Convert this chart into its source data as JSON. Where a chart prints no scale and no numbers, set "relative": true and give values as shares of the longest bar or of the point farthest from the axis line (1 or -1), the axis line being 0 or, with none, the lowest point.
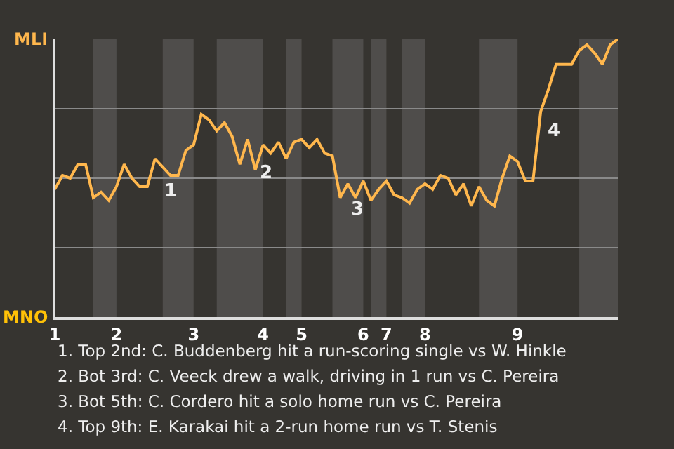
{
  "chart_data": {
    "type": "line",
    "relative": true,
    "categories": [
      "1",
      null,
      null,
      null,
      null,
      null,
      null,
      null,
      "2",
      null,
      null,
      null,
      null,
      null,
      null,
      null,
      null,
      null,
      "3",
      null,
      null,
      null,
      null,
      null,
      null,
      null,
      null,
      "4",
      null,
      null,
      null,
      null,
      "5",
      null,
      null,
      null,
      null,
      null,
      null,
      null,
      "6",
      null,
      null,
      "7",
      null,
      null,
      null,
      null,
      "8",
      null,
      null,
      null,
      null,
      null,
      null,
      null,
      null,
      null,
      null,
      null,
      "9",
      null,
      null,
      null,
      null,
      null,
      null,
      null,
      null,
      null,
      null,
      null,
      null,
      null
    ],
    "series": [
      {
        "color": "#ffb74d",
        "values": [
          0.46,
          0.51,
          0.5,
          0.55,
          0.55,
          0.43,
          0.45,
          0.42,
          0.47,
          0.55,
          0.5,
          0.47,
          0.47,
          0.57,
          0.54,
          0.51,
          0.51,
          0.6,
          0.62,
          0.73,
          0.71,
          0.67,
          0.7,
          0.65,
          0.55,
          0.64,
          0.53,
          0.62,
          0.59,
          0.63,
          0.57,
          0.63,
          0.64,
          0.61,
          0.64,
          0.59,
          0.58,
          0.43,
          0.48,
          0.43,
          0.49,
          0.42,
          0.46,
          0.49,
          0.44,
          0.43,
          0.41,
          0.46,
          0.48,
          0.46,
          0.51,
          0.5,
          0.44,
          0.48,
          0.4,
          0.47,
          0.42,
          0.4,
          0.5,
          0.58,
          0.56,
          0.49,
          0.49,
          0.74,
          0.82,
          0.91,
          0.91,
          0.91,
          0.96,
          0.98,
          0.95,
          0.91,
          0.98,
          1.0
        ]
      }
    ],
    "grid": "y",
    "marker": "none",
    "line_style": "solid",
    "annotations": [
      "MLI",
      "MNO",
      "1",
      "2",
      "3",
      "4",
      "1. Top 2nd: C. Buddenberg hit a run-scoring single vs W. Hinkle",
      "2. Bot 3rd: C. Veeck drew a walk, driving in 1 run vs C. Pereira",
      "3. Bot 5th: C. Cordero hit a solo home run vs C. Pereira",
      "4. Top 9th: E. Karakai hit a 2-run home run vs T. Stenis"
    ]
  }
}
